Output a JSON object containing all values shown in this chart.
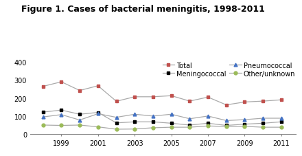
{
  "title": "Figure 1. Cases of bacterial meningitis, 1998-2011",
  "years": [
    1998,
    1999,
    2000,
    2001,
    2002,
    2003,
    2004,
    2005,
    2006,
    2007,
    2008,
    2009,
    2010,
    2011
  ],
  "total": [
    265,
    290,
    242,
    268,
    182,
    207,
    207,
    213,
    183,
    205,
    162,
    178,
    183,
    190
  ],
  "meningococcal": [
    122,
    133,
    110,
    120,
    62,
    68,
    68,
    60,
    50,
    60,
    48,
    55,
    60,
    68
  ],
  "pneumococcal": [
    95,
    108,
    78,
    113,
    93,
    110,
    100,
    110,
    85,
    100,
    75,
    80,
    88,
    88
  ],
  "other": [
    50,
    48,
    50,
    40,
    27,
    28,
    35,
    38,
    38,
    45,
    42,
    43,
    38,
    38
  ],
  "total_color": "#c0504d",
  "mening_color": "#000000",
  "pneumo_color": "#4472c4",
  "other_color": "#9bbb59",
  "line_color": "#aaaaaa",
  "ylim": [
    0,
    400
  ],
  "yticks": [
    0,
    100,
    200,
    300,
    400
  ],
  "xticks": [
    1999,
    2001,
    2003,
    2005,
    2007,
    2009,
    2011
  ],
  "xlim": [
    1997.3,
    2011.8
  ],
  "legend_labels": [
    "Total",
    "Meningococcal",
    "Pneumococcal",
    "Other/unknown"
  ],
  "title_fontsize": 9,
  "tick_fontsize": 7,
  "legend_fontsize": 7
}
